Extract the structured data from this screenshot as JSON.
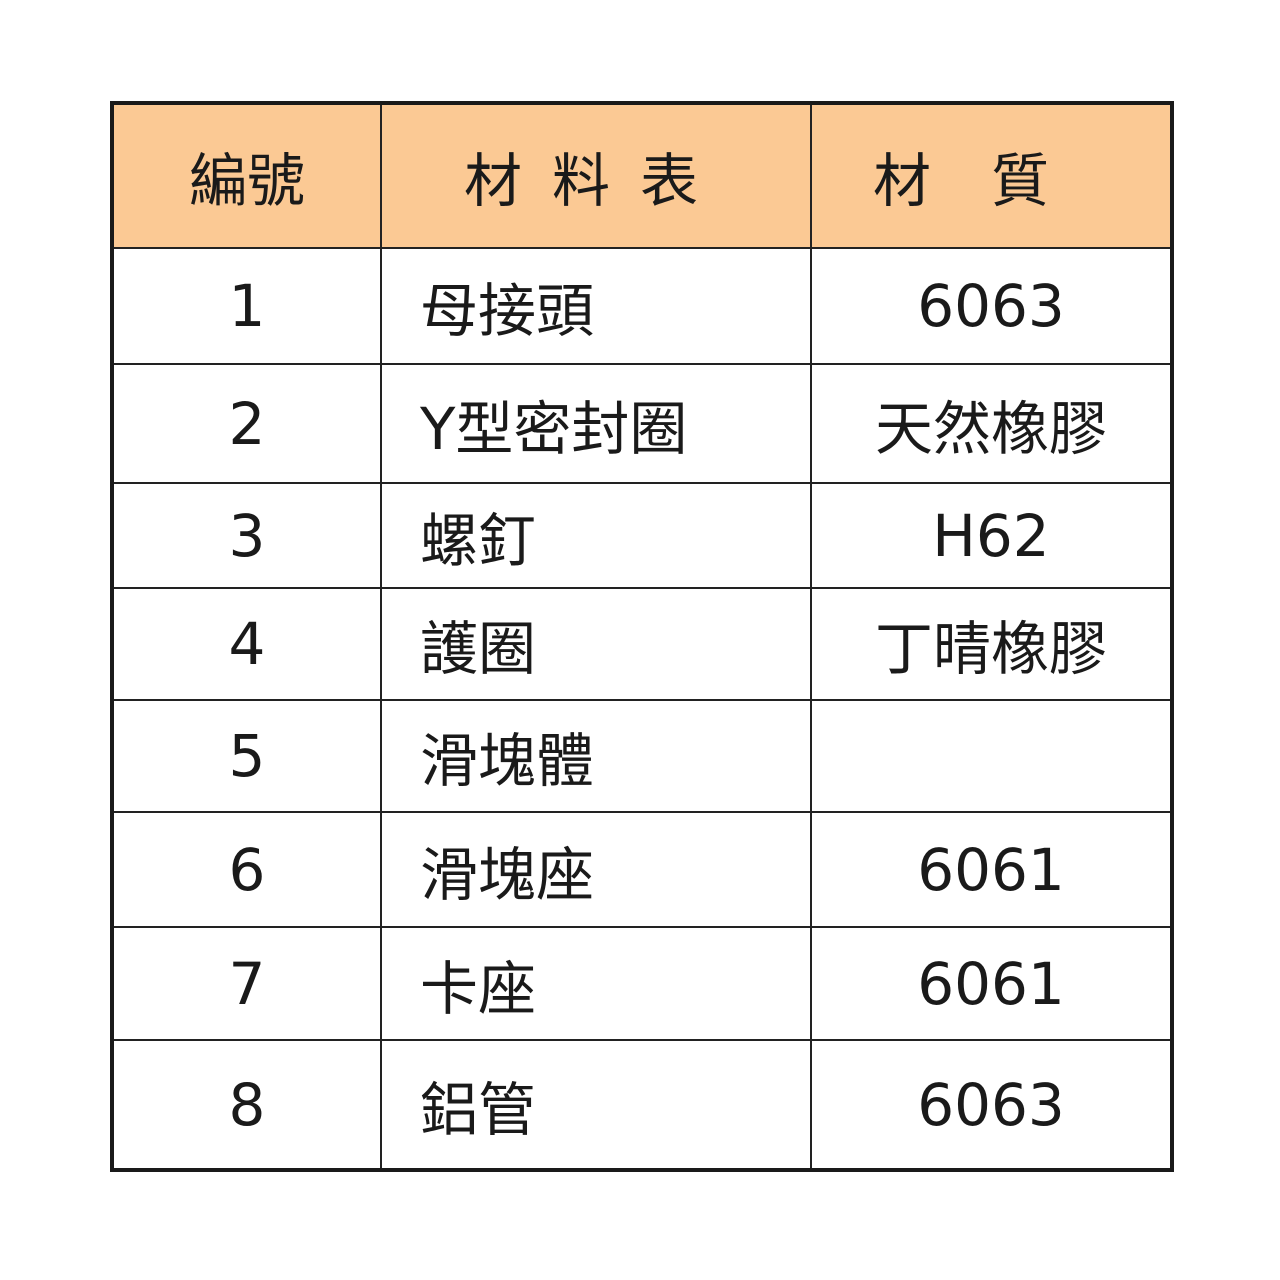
{
  "table": {
    "header_color": "#fbc994",
    "headers": [
      "編號",
      "材料表",
      "材質"
    ],
    "rows": [
      {
        "no": "1",
        "part": "母接頭",
        "material": "6063"
      },
      {
        "no": "2",
        "part": "Y型密封圈",
        "material": "天然橡膠"
      },
      {
        "no": "3",
        "part": "螺釘",
        "material": "H62"
      },
      {
        "no": "4",
        "part": "護圈",
        "material": "丁晴橡膠"
      },
      {
        "no": "5",
        "part": "滑塊體",
        "material": ""
      },
      {
        "no": "6",
        "part": "滑塊座",
        "material": "6061"
      },
      {
        "no": "7",
        "part": "卡座",
        "material": "6061"
      },
      {
        "no": "8",
        "part": "鋁管",
        "material": "6063"
      }
    ]
  }
}
